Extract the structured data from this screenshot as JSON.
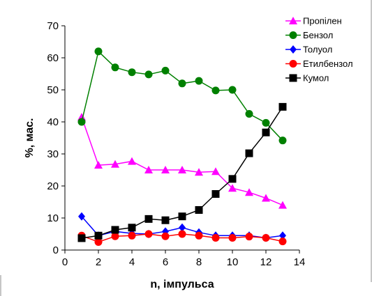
{
  "chart_data": {
    "type": "line",
    "title": "",
    "xlabel": "n, імпульса",
    "ylabel": "%, мас.",
    "xlim": [
      0,
      14
    ],
    "ylim": [
      0,
      70
    ],
    "xticks": [
      0,
      2,
      4,
      6,
      8,
      10,
      12,
      14
    ],
    "yticks": [
      0,
      10,
      20,
      30,
      40,
      50,
      60,
      70
    ],
    "grid": false,
    "legend_position": "top-right",
    "x": [
      1,
      2,
      3,
      4,
      5,
      6,
      7,
      8,
      9,
      10,
      11,
      12,
      13
    ],
    "series": [
      {
        "name": "Пропілен",
        "color": "#ff00ff",
        "marker": "triangle",
        "values": [
          41.5,
          26.5,
          26.8,
          27.7,
          25.0,
          25.0,
          25.0,
          24.3,
          24.5,
          19.3,
          18.0,
          16.2,
          14.0
        ]
      },
      {
        "name": "Бензол",
        "color": "#008000",
        "marker": "circle",
        "values": [
          40.0,
          62.0,
          57.0,
          55.5,
          54.8,
          56.0,
          52.0,
          52.8,
          49.8,
          50.0,
          42.5,
          39.7,
          34.2
        ]
      },
      {
        "name": "Толуол",
        "color": "#0000ff",
        "marker": "diamond",
        "values": [
          10.5,
          4.5,
          5.8,
          5.2,
          5.0,
          5.8,
          7.0,
          5.5,
          4.5,
          4.5,
          4.5,
          3.8,
          4.5
        ]
      },
      {
        "name": "Етилбензол",
        "color": "#ff0000",
        "marker": "circle",
        "values": [
          4.5,
          2.5,
          4.3,
          4.5,
          5.0,
          4.3,
          5.0,
          4.5,
          3.8,
          3.8,
          4.2,
          3.8,
          2.7
        ]
      },
      {
        "name": "Кумол",
        "color": "#000000",
        "marker": "square",
        "values": [
          3.7,
          4.5,
          6.3,
          7.0,
          9.7,
          9.3,
          10.5,
          12.5,
          17.5,
          22.2,
          30.2,
          36.7,
          44.7
        ]
      }
    ]
  }
}
